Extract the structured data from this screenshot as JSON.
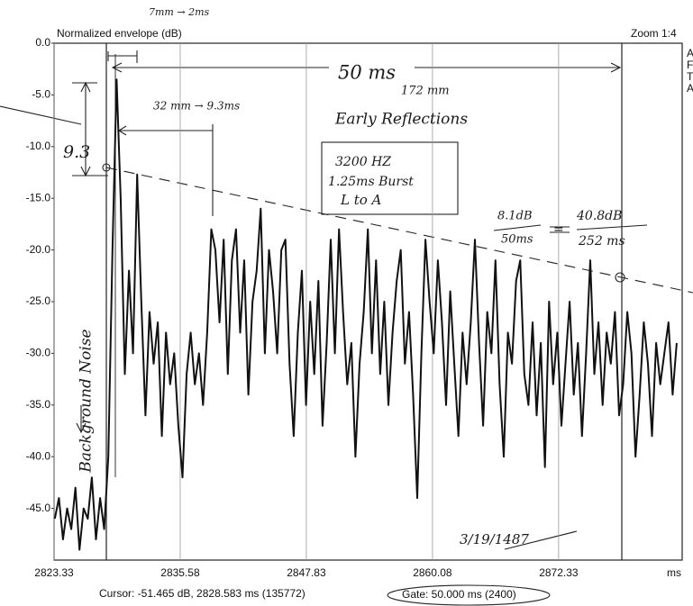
{
  "chart_data": {
    "type": "line",
    "title": "Normalized envelope (dB)",
    "zoom": "Zoom 1:4",
    "x_unit": "ms",
    "cursor": "Cursor: -51.465 dB, 2828.583 ms (135772)",
    "gate": "Gate:  50.000 ms (2400)",
    "edge_text": [
      "A",
      "F",
      "T",
      "A"
    ],
    "color": "#111111",
    "grid": "x",
    "xlim": [
      2823.33,
      2884.33
    ],
    "ylim": [
      -50,
      0
    ],
    "xticks": [
      2823.33,
      2835.58,
      2847.83,
      2860.08,
      2872.33
    ],
    "yticks": [
      {
        "value": 0,
        "label": "0.0"
      },
      {
        "value": -5,
        "label": "-5.0"
      },
      {
        "value": -10,
        "label": "-10.0"
      },
      {
        "value": -15,
        "label": "-15.0"
      },
      {
        "value": -20,
        "label": "-20.0"
      },
      {
        "value": -25,
        "label": "-25.0"
      },
      {
        "value": -30,
        "label": "-30.0"
      },
      {
        "value": -35,
        "label": "-35.0"
      },
      {
        "value": -40,
        "label": "-40.0"
      },
      {
        "value": -45,
        "label": "-45.0"
      }
    ],
    "x": [
      2823.4,
      2823.8,
      2824.2,
      2824.6,
      2825,
      2825.4,
      2825.8,
      2826.2,
      2826.6,
      2827,
      2827.4,
      2827.8,
      2828.2,
      2828.6,
      2829,
      2829.4,
      2829.8,
      2830.2,
      2830.6,
      2831,
      2831.4,
      2831.8,
      2832.2,
      2832.6,
      2833,
      2833.4,
      2833.8,
      2834.2,
      2834.6,
      2835,
      2835.4,
      2835.8,
      2836.2,
      2836.6,
      2837,
      2837.4,
      2837.8,
      2838.2,
      2838.6,
      2839,
      2839.4,
      2839.8,
      2840.2,
      2840.6,
      2841,
      2841.4,
      2841.8,
      2842.2,
      2842.6,
      2843,
      2843.4,
      2843.8,
      2844.2,
      2844.6,
      2845,
      2845.4,
      2845.8,
      2846.2,
      2846.6,
      2847,
      2847.4,
      2847.8,
      2848.2,
      2848.6,
      2849,
      2849.4,
      2849.8,
      2850.2,
      2850.6,
      2851,
      2851.4,
      2851.8,
      2852.2,
      2852.6,
      2853,
      2853.4,
      2853.8,
      2854.2,
      2854.6,
      2855,
      2855.4,
      2855.8,
      2856.2,
      2856.6,
      2857,
      2857.4,
      2857.8,
      2858.2,
      2858.6,
      2859,
      2859.4,
      2859.8,
      2860.2,
      2860.6,
      2861,
      2861.4,
      2861.8,
      2862.2,
      2862.6,
      2863,
      2863.4,
      2863.8,
      2864.2,
      2864.6,
      2865,
      2865.4,
      2865.8,
      2866.2,
      2866.6,
      2867,
      2867.4,
      2867.8,
      2868.2,
      2868.6,
      2869,
      2869.4,
      2869.8,
      2870.2,
      2870.6,
      2871,
      2871.4,
      2871.8,
      2872.2,
      2872.6,
      2873,
      2873.4,
      2873.8,
      2874.2,
      2874.6,
      2875,
      2875.4,
      2875.8,
      2876.2,
      2876.6,
      2877,
      2877.4,
      2877.8,
      2878.2,
      2878.6,
      2879,
      2879.4,
      2879.8,
      2880.2,
      2880.6,
      2881,
      2881.4,
      2881.8,
      2882.2,
      2882.6,
      2883,
      2883.4,
      2883.8
    ],
    "values": [
      -46,
      -44,
      -48,
      -45,
      -47,
      -43,
      -49,
      -45,
      -46,
      -42,
      -48,
      -44,
      -47,
      -40,
      -20,
      -3.5,
      -15,
      -32,
      -22,
      -30,
      -12.7,
      -25,
      -36,
      -26,
      -31,
      -27,
      -38,
      -28,
      -33,
      -30,
      -37,
      -42,
      -32,
      -28,
      -33,
      -30,
      -35,
      -28,
      -18,
      -20,
      -27,
      -19,
      -32,
      -21,
      -18,
      -28,
      -21,
      -34,
      -25,
      -22,
      -16,
      -30,
      -20,
      -24,
      -30,
      -20,
      -19,
      -31,
      -38,
      -28,
      -22,
      -35,
      -25,
      -32,
      -23,
      -37,
      -29,
      -19,
      -30,
      -18,
      -26,
      -33,
      -29,
      -40,
      -31,
      -26,
      -18,
      -30,
      -21,
      -32,
      -25,
      -35,
      -28,
      -23,
      -20,
      -31,
      -26,
      -34,
      -44,
      -30,
      -19,
      -25,
      -30,
      -21,
      -27,
      -35,
      -24,
      -31,
      -38,
      -28,
      -33,
      -27,
      -19,
      -29,
      -37,
      -26,
      -30,
      -21,
      -33,
      -40,
      -28,
      -31,
      -23,
      -21,
      -32,
      -35,
      -27,
      -36,
      -29,
      -41,
      -25,
      -33,
      -28,
      -37,
      -31,
      -25,
      -34,
      -29,
      -38,
      -30,
      -21,
      -32,
      -27,
      -35,
      -28,
      -31,
      -26,
      -36,
      -33,
      -26,
      -30,
      -40,
      -34,
      -27,
      -31,
      -38,
      -29,
      -33,
      -30,
      -27,
      -34,
      -29
    ],
    "annotations": [
      "7mm → 2ms",
      "50 ms",
      "172 mm",
      "32 mm → 9.3ms",
      "Early Reflections",
      "9.3",
      "3200 HZ",
      "1.25ms Burst",
      "L to A",
      "8.1dB",
      "50ms",
      "=",
      "40.8dB",
      "252 ms",
      "Background Noise",
      "3/19/1487"
    ]
  }
}
